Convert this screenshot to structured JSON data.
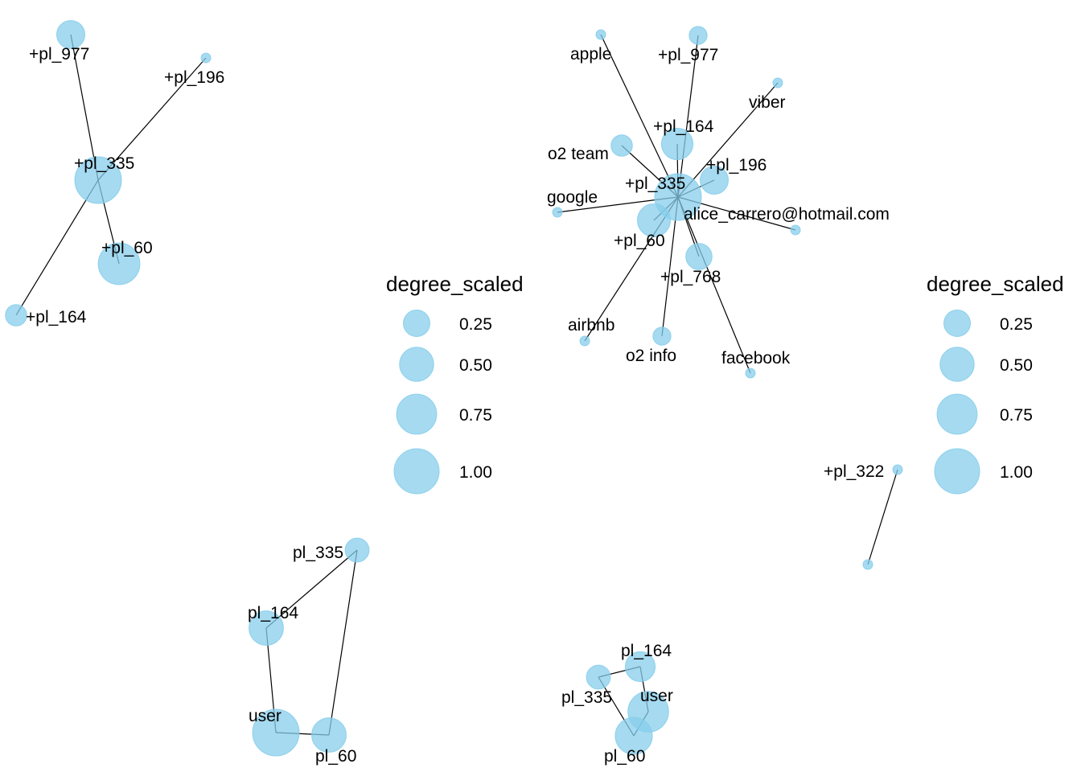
{
  "colors": {
    "node": "#87CEEB",
    "edge": "#000000",
    "background": "#ffffff"
  },
  "legend": {
    "title": "degree_scaled",
    "items": [
      {
        "label": "0.25",
        "value": 0.25
      },
      {
        "label": "0.50",
        "value": 0.5
      },
      {
        "label": "0.75",
        "value": 0.75
      },
      {
        "label": "1.00",
        "value": 1.0
      }
    ]
  },
  "networks": [
    {
      "id": "net-a",
      "nodes": [
        {
          "id": "a335",
          "label": "+pl_335",
          "degree_scaled": 1.0
        },
        {
          "id": "a977",
          "label": "+pl_977",
          "degree_scaled": 0.25
        },
        {
          "id": "a196",
          "label": "+pl_196",
          "degree_scaled": 0.0
        },
        {
          "id": "a60",
          "label": "+pl_60",
          "degree_scaled": 0.75
        },
        {
          "id": "a164",
          "label": "+pl_164",
          "degree_scaled": 0.1
        }
      ],
      "edges": [
        [
          "a335",
          "a977"
        ],
        [
          "a335",
          "a196"
        ],
        [
          "a335",
          "a60"
        ],
        [
          "a335",
          "a164"
        ]
      ]
    },
    {
      "id": "net-b",
      "nodes": [
        {
          "id": "b335",
          "label": "+pl_335",
          "degree_scaled": 1.0
        },
        {
          "id": "bapple",
          "label": "apple",
          "degree_scaled": 0.0
        },
        {
          "id": "b977",
          "label": "+pl_977",
          "degree_scaled": 0.05
        },
        {
          "id": "bviber",
          "label": "viber",
          "degree_scaled": 0.0
        },
        {
          "id": "b164",
          "label": "+pl_164",
          "degree_scaled": 0.35
        },
        {
          "id": "bo2team",
          "label": "o2 team",
          "degree_scaled": 0.1
        },
        {
          "id": "b196",
          "label": "+pl_196",
          "degree_scaled": 0.25
        },
        {
          "id": "bgoogle",
          "label": "google",
          "degree_scaled": 0.0
        },
        {
          "id": "balice",
          "label": "alice_carrero@hotmail.com",
          "degree_scaled": 0.0
        },
        {
          "id": "b60",
          "label": "+pl_60",
          "degree_scaled": 0.4
        },
        {
          "id": "b768",
          "label": "+pl_768",
          "degree_scaled": 0.2
        },
        {
          "id": "bairbnb",
          "label": "airbnb",
          "degree_scaled": 0.0
        },
        {
          "id": "bo2info",
          "label": "o2 info",
          "degree_scaled": 0.05
        },
        {
          "id": "bfacebook",
          "label": "facebook",
          "degree_scaled": 0.0
        }
      ],
      "edges": [
        [
          "b335",
          "bapple"
        ],
        [
          "b335",
          "b977"
        ],
        [
          "b335",
          "bviber"
        ],
        [
          "b335",
          "b164"
        ],
        [
          "b335",
          "bo2team"
        ],
        [
          "b335",
          "b196"
        ],
        [
          "b335",
          "bgoogle"
        ],
        [
          "b335",
          "balice"
        ],
        [
          "b335",
          "b60"
        ],
        [
          "b335",
          "b768"
        ],
        [
          "b335",
          "bairbnb"
        ],
        [
          "b335",
          "bo2info"
        ],
        [
          "b335",
          "bfacebook"
        ]
      ]
    },
    {
      "id": "net-c",
      "nodes": [
        {
          "id": "c322",
          "label": "+pl_322",
          "degree_scaled": 0.0
        },
        {
          "id": "cother",
          "label": "",
          "degree_scaled": 0.0
        }
      ],
      "edges": [
        [
          "c322",
          "cother"
        ]
      ]
    },
    {
      "id": "net-d",
      "nodes": [
        {
          "id": "d335",
          "label": "pl_335",
          "degree_scaled": 0.15
        },
        {
          "id": "d164",
          "label": "pl_164",
          "degree_scaled": 0.45
        },
        {
          "id": "duser",
          "label": "user",
          "degree_scaled": 1.0
        },
        {
          "id": "d60",
          "label": "pl_60",
          "degree_scaled": 0.45
        }
      ],
      "edges": [
        [
          "d335",
          "d164"
        ],
        [
          "d335",
          "d60"
        ],
        [
          "d164",
          "duser"
        ],
        [
          "duser",
          "d60"
        ]
      ]
    },
    {
      "id": "net-e",
      "nodes": [
        {
          "id": "e164",
          "label": "pl_164",
          "degree_scaled": 0.3
        },
        {
          "id": "e335",
          "label": "pl_335",
          "degree_scaled": 0.15
        },
        {
          "id": "euser",
          "label": "user",
          "degree_scaled": 0.7
        },
        {
          "id": "e60",
          "label": "pl_60",
          "degree_scaled": 0.55
        }
      ],
      "edges": [
        [
          "e335",
          "e164"
        ],
        [
          "e164",
          "euser"
        ],
        [
          "euser",
          "e60"
        ],
        [
          "e335",
          "e60"
        ]
      ]
    }
  ]
}
